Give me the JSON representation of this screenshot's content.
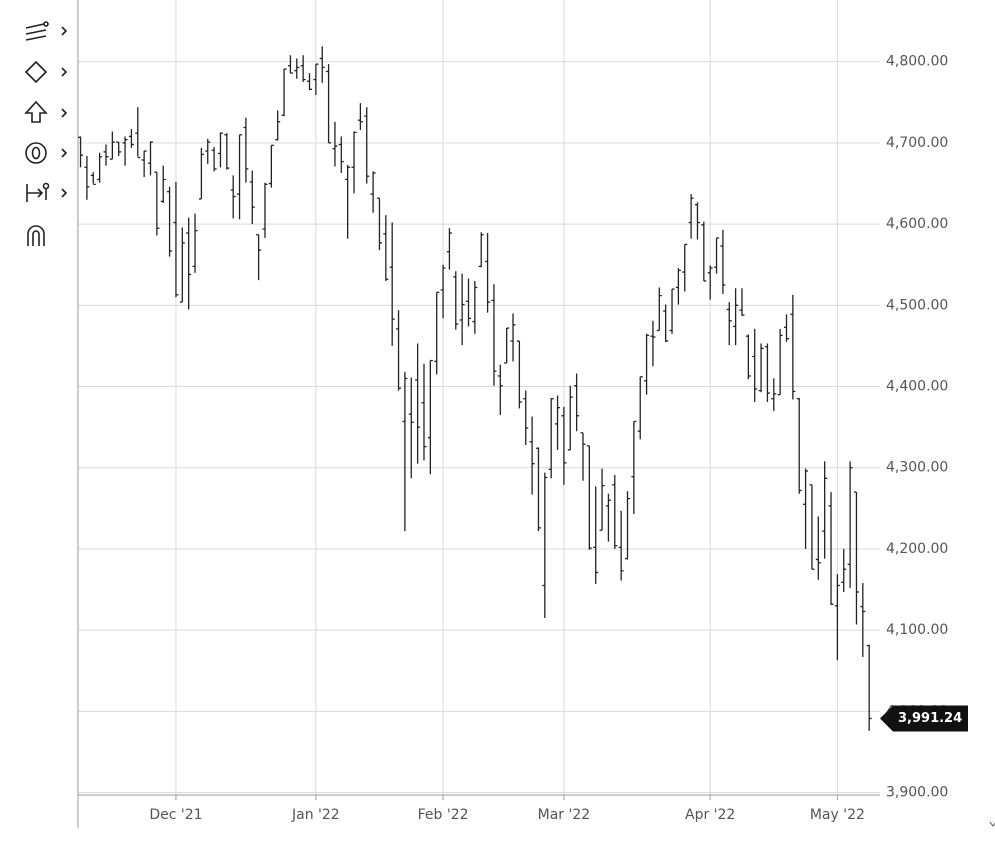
{
  "chart_data": {
    "type": "ohlc",
    "color": "#222222",
    "grid": true,
    "xlim": [
      -0.4,
      125.7
    ],
    "xticks": [
      {
        "value": 15,
        "label": "Dec '21"
      },
      {
        "value": 37,
        "label": "Jan '22"
      },
      {
        "value": 57,
        "label": "Feb '22"
      },
      {
        "value": 76,
        "label": "Mar '22"
      },
      {
        "value": 99,
        "label": "Apr '22"
      },
      {
        "value": 119,
        "label": "May '22"
      }
    ],
    "ylim": [
      3897,
      4876
    ],
    "yticks": [
      {
        "value": 3900,
        "label": "3,900.00"
      },
      {
        "value": 4000,
        "label": "4,000.00"
      },
      {
        "value": 4100,
        "label": "4,100.00"
      },
      {
        "value": 4200,
        "label": "4,200.00"
      },
      {
        "value": 4300,
        "label": "4,300.00"
      },
      {
        "value": 4400,
        "label": "4,400.00"
      },
      {
        "value": 4500,
        "label": "4,500.00"
      },
      {
        "value": 4600,
        "label": "4,600.00"
      },
      {
        "value": 4700,
        "label": "4,700.00"
      },
      {
        "value": 4800,
        "label": "4,800.00"
      }
    ],
    "last_price": {
      "value": 3991.24,
      "label": "3,991.24"
    },
    "series": {
      "open": [
        4707,
        4670,
        4660,
        4655,
        4689,
        4680,
        4701,
        4700,
        4708,
        4712,
        4679,
        4675,
        4664,
        4628,
        4640,
        4602,
        4504,
        4589,
        4548,
        4631,
        4690,
        4691,
        4687,
        4710,
        4642,
        4637,
        4719,
        4652,
        4587,
        4594,
        4650,
        4704,
        4734,
        4795,
        4789,
        4795,
        4776,
        4778,
        4804,
        4788,
        4693,
        4698,
        4655,
        4670,
        4728,
        4733,
        4637,
        4632,
        4588,
        4547,
        4471,
        4357,
        4366,
        4408,
        4380,
        4337,
        4431,
        4519,
        4566,
        4535,
        4482,
        4505,
        4480,
        4548,
        4554,
        4506,
        4413,
        4429,
        4456,
        4456,
        4385,
        4332,
        4324,
        4155,
        4298,
        4354,
        4364,
        4322,
        4401,
        4343,
        4327,
        4202,
        4223,
        4253,
        4279,
        4202,
        4188,
        4289,
        4345,
        4407,
        4462,
        4469,
        4493,
        4469,
        4522,
        4541,
        4602,
        4624,
        4599,
        4540,
        4547,
        4573,
        4495,
        4474,
        4494,
        4462,
        4437,
        4395,
        4449,
        4385,
        4390,
        4473,
        4489,
        4385,
        4255,
        4279,
        4187,
        4222,
        4253,
        4130,
        4159,
        4181,
        4270,
        4129,
        4081
      ],
      "high": [
        4708,
        4684,
        4664,
        4688,
        4698,
        4714,
        4701,
        4708,
        4717,
        4744,
        4690,
        4702,
        4664,
        4672,
        4646,
        4652,
        4596,
        4608,
        4613,
        4694,
        4705,
        4695,
        4713,
        4712,
        4660,
        4710,
        4731,
        4666,
        4587,
        4651,
        4697,
        4740,
        4791,
        4808,
        4804,
        4808,
        4786,
        4797,
        4819,
        4797,
        4726,
        4708,
        4673,
        4714,
        4749,
        4744,
        4665,
        4632,
        4611,
        4602,
        4494,
        4418,
        4411,
        4453,
        4428,
        4432,
        4516,
        4550,
        4595,
        4542,
        4539,
        4533,
        4530,
        4590,
        4589,
        4526,
        4427,
        4472,
        4490,
        4456,
        4395,
        4363,
        4325,
        4294,
        4386,
        4389,
        4375,
        4401,
        4416,
        4343,
        4327,
        4277,
        4299,
        4268,
        4291,
        4247,
        4271,
        4357,
        4412,
        4465,
        4481,
        4522,
        4501,
        4520,
        4546,
        4575,
        4637,
        4627,
        4603,
        4549,
        4583,
        4593,
        4504,
        4521,
        4521,
        4464,
        4471,
        4453,
        4453,
        4410,
        4471,
        4489,
        4513,
        4386,
        4299,
        4279,
        4240,
        4308,
        4270,
        4169,
        4200,
        4308,
        4270,
        4158,
        4082
      ],
      "low": [
        4670,
        4630,
        4650,
        4651,
        4672,
        4680,
        4684,
        4672,
        4694,
        4683,
        4658,
        4660,
        4586,
        4626,
        4560,
        4510,
        4504,
        4495,
        4540,
        4631,
        4674,
        4665,
        4670,
        4667,
        4607,
        4606,
        4651,
        4600,
        4531,
        4583,
        4645,
        4703,
        4733,
        4786,
        4779,
        4775,
        4765,
        4759,
        4774,
        4700,
        4671,
        4663,
        4582,
        4638,
        4716,
        4650,
        4614,
        4568,
        4530,
        4450,
        4395,
        4222,
        4287,
        4305,
        4309,
        4292,
        4415,
        4484,
        4544,
        4470,
        4451,
        4474,
        4465,
        4547,
        4491,
        4401,
        4365,
        4429,
        4431,
        4373,
        4328,
        4267,
        4222,
        4115,
        4287,
        4322,
        4279,
        4322,
        4345,
        4284,
        4199,
        4157,
        4223,
        4209,
        4200,
        4161,
        4187,
        4243,
        4335,
        4390,
        4425,
        4469,
        4455,
        4465,
        4501,
        4517,
        4582,
        4581,
        4530,
        4507,
        4539,
        4514,
        4451,
        4451,
        4487,
        4409,
        4381,
        4393,
        4381,
        4370,
        4390,
        4455,
        4384,
        4268,
        4200,
        4175,
        4162,
        4188,
        4131,
        4063,
        4147,
        4152,
        4107,
        4067,
        3976
      ],
      "close": [
        4685,
        4646,
        4649,
        4683,
        4683,
        4701,
        4689,
        4704,
        4698,
        4682,
        4690,
        4701,
        4595,
        4655,
        4567,
        4513,
        4577,
        4538,
        4592,
        4686,
        4701,
        4668,
        4712,
        4669,
        4634,
        4710,
        4668,
        4621,
        4568,
        4649,
        4697,
        4726,
        4791,
        4786,
        4793,
        4778,
        4766,
        4797,
        4793,
        4700,
        4696,
        4677,
        4670,
        4713,
        4726,
        4659,
        4663,
        4577,
        4532,
        4483,
        4398,
        4410,
        4356,
        4350,
        4326,
        4432,
        4516,
        4546,
        4589,
        4477,
        4501,
        4484,
        4522,
        4587,
        4504,
        4419,
        4401,
        4472,
        4476,
        4381,
        4349,
        4305,
        4226,
        4288,
        4385,
        4374,
        4306,
        4387,
        4364,
        4329,
        4201,
        4171,
        4278,
        4260,
        4204,
        4173,
        4262,
        4357,
        4412,
        4463,
        4461,
        4512,
        4456,
        4520,
        4543,
        4575,
        4632,
        4602,
        4530,
        4546,
        4583,
        4525,
        4481,
        4500,
        4488,
        4413,
        4397,
        4447,
        4392,
        4391,
        4463,
        4459,
        4394,
        4272,
        4296,
        4175,
        4183,
        4287,
        4132,
        4155,
        4175,
        4300,
        4147,
        4123,
        3991.24
      ]
    }
  }
}
